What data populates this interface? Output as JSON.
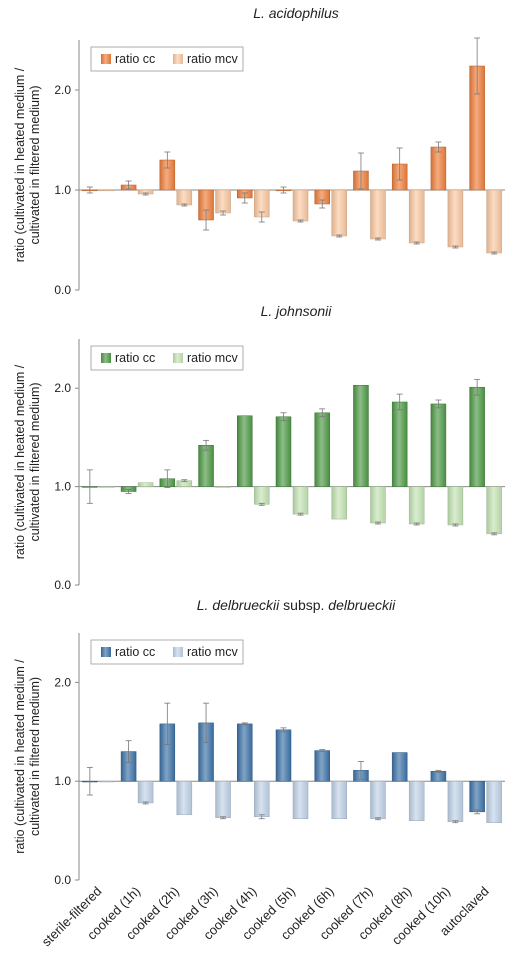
{
  "ylabel": "ratio (cultivated in heated medium / cultivated in filtered medium)",
  "ylabel_lines": [
    "ratio (cultivated in heated medium /",
    "cultivated in filtered medium)"
  ],
  "categories": [
    "sterile-filtered",
    "cooked (1h)",
    "cooked (2h)",
    "cooked (3h)",
    "cooked (4h)",
    "cooked (5h)",
    "cooked (6h)",
    "cooked (7h)",
    "cooked (8h)",
    "cooked (10h)",
    "autoclaved"
  ],
  "chart_data": [
    {
      "type": "bar",
      "title": "L. acidophilus",
      "title_parts": [
        {
          "text": "L. acidophilus",
          "italic": true
        }
      ],
      "ylim": [
        0,
        2.5
      ],
      "yticks": [
        "0.0",
        "1.0",
        "2.0"
      ],
      "grid": false,
      "legend_position": "top-left",
      "colors": {
        "cc": "#f07f3c",
        "mcv": "#fbc9a3"
      },
      "series": [
        {
          "name": "ratio cc",
          "values": [
            1.0,
            1.05,
            1.3,
            0.7,
            0.92,
            1.0,
            0.86,
            1.19,
            1.26,
            1.43,
            2.24
          ],
          "errors": [
            0.03,
            0.04,
            0.08,
            0.1,
            0.05,
            0.03,
            0.04,
            0.18,
            0.16,
            0.05,
            0.28
          ]
        },
        {
          "name": "ratio mcv",
          "values": [
            1.0,
            0.96,
            0.85,
            0.77,
            0.73,
            0.69,
            0.54,
            0.51,
            0.47,
            0.43,
            0.37
          ],
          "errors": [
            0.0,
            0.01,
            0.01,
            0.02,
            0.05,
            0.01,
            0.01,
            0.01,
            0.01,
            0.01,
            0.01
          ]
        }
      ]
    },
    {
      "type": "bar",
      "title": "L. johnsonii",
      "title_parts": [
        {
          "text": "L. johnsonii",
          "italic": true
        }
      ],
      "ylim": [
        0,
        2.5
      ],
      "yticks": [
        "0.0",
        "1.0",
        "2.0"
      ],
      "grid": false,
      "legend_position": "top-left",
      "colors": {
        "cc": "#4e9a47",
        "mcv": "#c4e4b4"
      },
      "series": [
        {
          "name": "ratio cc",
          "values": [
            1.0,
            0.95,
            1.08,
            1.42,
            1.72,
            1.71,
            1.75,
            2.03,
            1.86,
            1.84,
            2.01
          ],
          "errors": [
            0.17,
            0.02,
            0.09,
            0.05,
            0.0,
            0.04,
            0.04,
            0.0,
            0.08,
            0.04,
            0.08
          ]
        },
        {
          "name": "ratio mcv",
          "values": [
            1.0,
            1.04,
            1.06,
            1.0,
            0.82,
            0.72,
            0.67,
            0.63,
            0.62,
            0.61,
            0.52
          ],
          "errors": [
            0.0,
            0.0,
            0.01,
            0.0,
            0.01,
            0.01,
            0.0,
            0.01,
            0.01,
            0.01,
            0.01
          ]
        }
      ]
    },
    {
      "type": "bar",
      "title": "L. delbrueckii subsp. delbrueckii",
      "title_parts": [
        {
          "text": "L. delbrueckii",
          "italic": true
        },
        {
          "text": " subsp. ",
          "italic": false
        },
        {
          "text": "delbrueckii",
          "italic": true
        }
      ],
      "ylim": [
        0,
        2.5
      ],
      "yticks": [
        "0.0",
        "1.0",
        "2.0"
      ],
      "grid": false,
      "legend_position": "top-left",
      "colors": {
        "cc": "#3d73a8",
        "mcv": "#c0d3e8"
      },
      "series": [
        {
          "name": "ratio cc",
          "values": [
            1.0,
            1.3,
            1.58,
            1.59,
            1.58,
            1.52,
            1.31,
            1.11,
            1.29,
            1.1,
            0.69
          ],
          "errors": [
            0.14,
            0.11,
            0.21,
            0.2,
            0.01,
            0.02,
            0.01,
            0.09,
            0.0,
            0.01,
            0.02
          ]
        },
        {
          "name": "ratio mcv",
          "values": [
            1.0,
            0.78,
            0.66,
            0.63,
            0.64,
            0.62,
            0.62,
            0.62,
            0.6,
            0.59,
            0.58
          ],
          "errors": [
            0.0,
            0.01,
            0.0,
            0.01,
            0.02,
            0.0,
            0.0,
            0.01,
            0.0,
            0.01,
            0.0
          ]
        }
      ]
    }
  ]
}
